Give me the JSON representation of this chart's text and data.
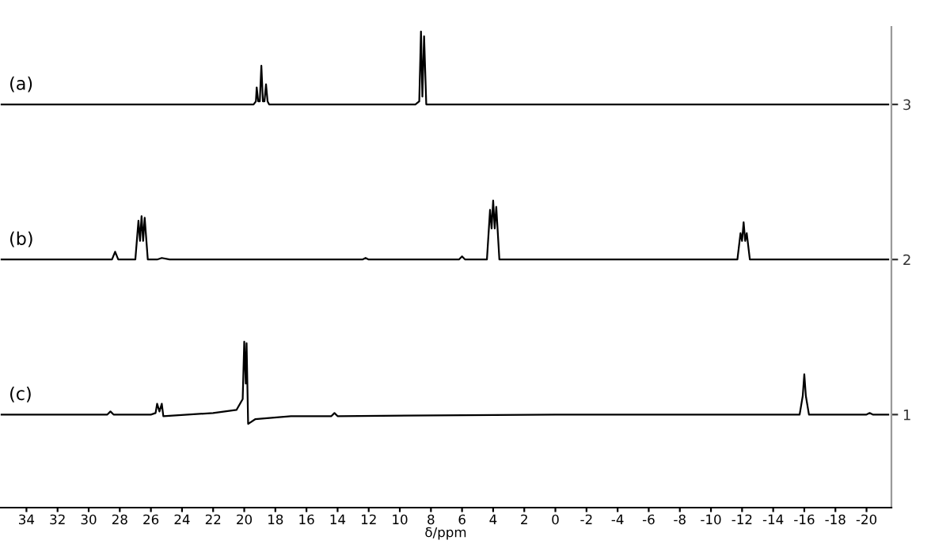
{
  "chart_data": {
    "type": "line",
    "xlabel": "δ/ppm",
    "xlim": [
      35.7,
      -21.6
    ],
    "xticks": [
      34,
      32,
      30,
      28,
      26,
      24,
      22,
      20,
      18,
      16,
      14,
      12,
      10,
      8,
      6,
      4,
      2,
      0,
      -2,
      -4,
      -6,
      -8,
      -10,
      -12,
      -14,
      -16,
      -18,
      -20
    ],
    "ylim": [
      0.4,
      3.5
    ],
    "yticks": [
      1,
      2,
      3
    ],
    "grid": false,
    "legend": false,
    "marker": "none",
    "line_style": "solid",
    "series": [
      {
        "name": "(a)",
        "color": "#000000",
        "x": [
          35.6,
          30,
          25,
          20,
          19.4,
          19.25,
          19.2,
          19.1,
          19.0,
          18.9,
          18.8,
          18.7,
          18.6,
          18.5,
          18.4,
          17,
          12,
          9,
          8.75,
          8.64,
          8.55,
          8.44,
          8.3,
          5,
          0,
          -5,
          -10,
          -15,
          -21.4
        ],
        "values": [
          3,
          3,
          3,
          3,
          3,
          3.02,
          3.11,
          3.02,
          3.02,
          3.25,
          3.02,
          3.02,
          3.13,
          3.02,
          3,
          3,
          3,
          3,
          3.02,
          3.47,
          3.05,
          3.44,
          3,
          3,
          3,
          3,
          3,
          3,
          3
        ]
      },
      {
        "name": "(b)",
        "color": "#000000",
        "x": [
          35.6,
          28.5,
          28.3,
          28.1,
          27.0,
          26.8,
          26.7,
          26.6,
          26.5,
          26.4,
          26.2,
          25.6,
          25.3,
          24.8,
          12.4,
          12.2,
          12.0,
          6.2,
          6.0,
          5.8,
          4.4,
          4.2,
          4.1,
          4.0,
          3.9,
          3.8,
          3.6,
          -11.7,
          -11.9,
          -12.0,
          -12.1,
          -12.2,
          -12.3,
          -12.5,
          -21.4
        ],
        "values": [
          2,
          2,
          2.05,
          2,
          2,
          2.25,
          2.12,
          2.28,
          2.12,
          2.27,
          2,
          2,
          2.01,
          2,
          2,
          2.01,
          2,
          2,
          2.02,
          2,
          2,
          2.32,
          2.2,
          2.38,
          2.2,
          2.34,
          2,
          2,
          2.17,
          2.12,
          2.24,
          2.12,
          2.17,
          2,
          2
        ]
      },
      {
        "name": "(c)",
        "color": "#000000",
        "x": [
          35.6,
          28.8,
          28.6,
          28.4,
          26,
          25.7,
          25.6,
          25.45,
          25.3,
          25.2,
          22,
          20.5,
          20.1,
          20.0,
          19.9,
          19.85,
          19.75,
          19.3,
          17,
          14.4,
          14.2,
          14.0,
          0,
          -15.7,
          -15.9,
          -16.0,
          -16.1,
          -16.3,
          -20,
          -20.2,
          -20.4,
          -21.4
        ],
        "values": [
          1,
          1,
          1.02,
          1,
          1,
          1.01,
          1.07,
          1.02,
          1.07,
          0.99,
          1.01,
          1.03,
          1.1,
          1.47,
          1.2,
          1.46,
          0.94,
          0.97,
          0.99,
          0.99,
          1.01,
          0.99,
          1,
          1,
          1.12,
          1.26,
          1.12,
          1,
          1,
          1.01,
          1,
          1
        ]
      }
    ]
  }
}
